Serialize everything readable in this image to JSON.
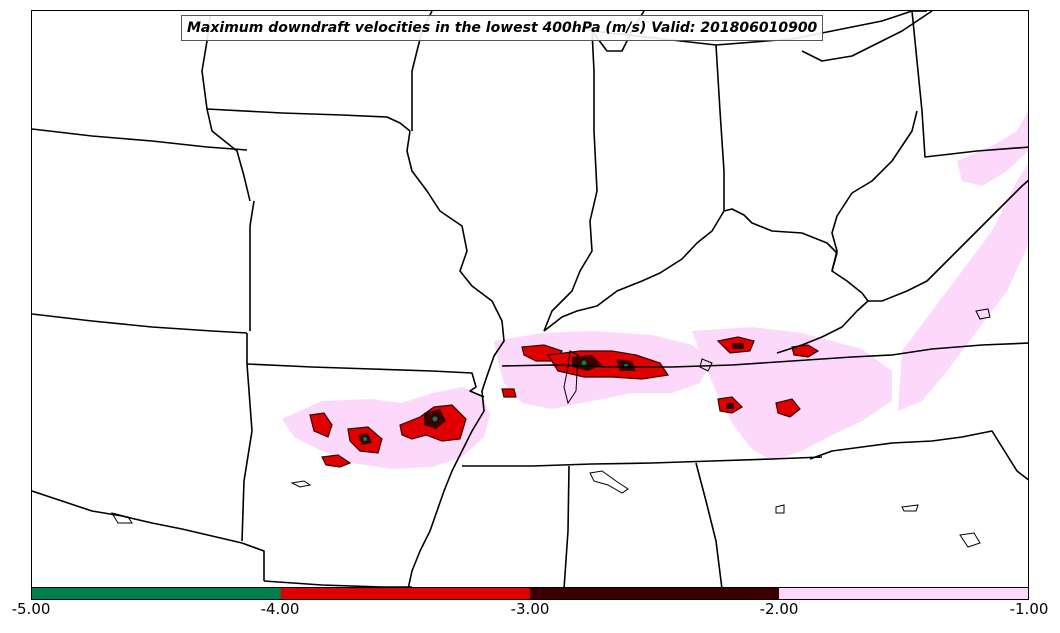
{
  "title": "Maximum downdraft velocities in the lowest 400hPa (m/s) Valid: 201806010900",
  "colorbar": {
    "tick_labels": [
      "-5.00",
      "-4.00",
      "-3.00",
      "-2.00",
      "-1.00"
    ],
    "segments": [
      {
        "from": -5.0,
        "to": -4.0,
        "color": "#00804f"
      },
      {
        "from": -4.0,
        "to": -3.0,
        "color": "#e00000"
      },
      {
        "from": -3.0,
        "to": -2.0,
        "color": "#3a0000"
      },
      {
        "from": -2.0,
        "to": -1.0,
        "color": "#fcd9fa"
      }
    ]
  },
  "field_colors": {
    "light": "#fcd9fa",
    "moderate": "#e00000",
    "strong": "#3a0000",
    "extreme": "#00804f",
    "boundaries": "#000000"
  }
}
